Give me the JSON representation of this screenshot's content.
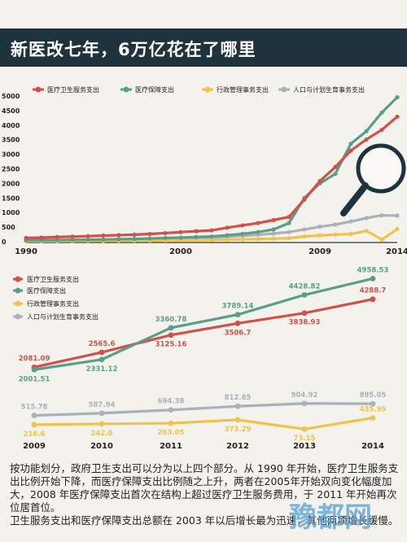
{
  "header": {
    "title": "新医改七年，6万亿花在了哪里"
  },
  "colors": {
    "health": "#d0504a",
    "insurance": "#5a9e8a",
    "admin": "#f1c24a",
    "population": "#a9b1ba",
    "header_bg": "#1f333d"
  },
  "chart_data": [
    {
      "type": "line",
      "title": "",
      "x_start": 1990,
      "x_end": 2014,
      "x_tick_labels": [
        "1990",
        "2000",
        "2009",
        "2014"
      ],
      "y_tick_labels": [
        "0",
        "500",
        "1000",
        "1500",
        "2000",
        "2500",
        "3000",
        "3500",
        "4000",
        "4500",
        "5000"
      ],
      "ylim": [
        0,
        5000
      ],
      "legend_placement": "top",
      "series": [
        {
          "name": "医疗卫生服务支出",
          "color_key": "health",
          "x": [
            1990,
            1991,
            1992,
            1993,
            1994,
            1995,
            1996,
            1997,
            1998,
            1999,
            2000,
            2001,
            2002,
            2003,
            2004,
            2005,
            2006,
            2007,
            2008,
            2009,
            2010,
            2011,
            2012,
            2013,
            2014
          ],
          "y": [
            130,
            140,
            160,
            175,
            190,
            210,
            225,
            240,
            265,
            295,
            330,
            360,
            390,
            480,
            560,
            640,
            740,
            850,
            1450,
            2081,
            2566,
            3125,
            3507,
            3839,
            4289
          ]
        },
        {
          "name": "医疗保障支出",
          "color_key": "insurance",
          "x": [
            1990,
            1991,
            1992,
            1993,
            1994,
            1995,
            1996,
            1997,
            1998,
            1999,
            2000,
            2001,
            2002,
            2003,
            2004,
            2005,
            2006,
            2007,
            2008,
            2009,
            2010,
            2011,
            2012,
            2013,
            2014
          ],
          "y": [
            50,
            55,
            60,
            65,
            70,
            75,
            85,
            95,
            110,
            125,
            140,
            160,
            180,
            220,
            270,
            330,
            420,
            640,
            1500,
            2002,
            2331,
            3361,
            3789,
            4429,
            4958
          ]
        },
        {
          "name": "行政管理事务支出",
          "color_key": "admin",
          "x": [
            1990,
            1991,
            1992,
            1993,
            1994,
            1995,
            1996,
            1997,
            1998,
            1999,
            2000,
            2001,
            2002,
            2003,
            2004,
            2005,
            2006,
            2007,
            2008,
            2009,
            2010,
            2011,
            2012,
            2013,
            2014
          ],
          "y": [
            20,
            22,
            25,
            28,
            30,
            32,
            35,
            38,
            42,
            46,
            50,
            55,
            60,
            70,
            80,
            90,
            105,
            120,
            180,
            217,
            242,
            263,
            373,
            73,
            436
          ]
        },
        {
          "name": "人口与计划生育事务支出",
          "color_key": "population",
          "x": [
            1990,
            1991,
            1992,
            1993,
            1994,
            1995,
            1996,
            1997,
            1998,
            1999,
            2000,
            2001,
            2002,
            2003,
            2004,
            2005,
            2006,
            2007,
            2008,
            2009,
            2010,
            2011,
            2012,
            2013,
            2014
          ],
          "y": [
            40,
            45,
            50,
            55,
            60,
            65,
            72,
            80,
            90,
            100,
            110,
            125,
            140,
            170,
            200,
            235,
            280,
            330,
            420,
            516,
            588,
            694,
            813,
            905,
            895
          ]
        }
      ]
    },
    {
      "type": "line",
      "title": "",
      "categories": [
        "2009",
        "2010",
        "2011",
        "2012",
        "2013",
        "2014"
      ],
      "legend_placement": "left",
      "series": [
        {
          "name": "医疗卫生服务支出",
          "color_key": "health",
          "values": [
            2081.09,
            2565.6,
            3125.16,
            3506.7,
            3838.93,
            4288.7
          ],
          "labels": [
            "2081.09",
            "2565.6",
            "3125.16",
            "3506.7",
            "3838.93",
            "4288.7"
          ]
        },
        {
          "name": "医疗保障支出",
          "color_key": "insurance",
          "values": [
            2001.51,
            2331.12,
            3360.78,
            3789.14,
            4428.82,
            4958.53
          ],
          "labels": [
            "2001.51",
            "2331.12",
            "3360.78",
            "3789.14",
            "4428.82",
            "4958.53"
          ]
        },
        {
          "name": "行政管理事务支出",
          "color_key": "admin",
          "values": [
            216.6,
            242.0,
            263.05,
            373.29,
            73.15,
            435.95
          ],
          "labels": [
            "216.6",
            "242.0",
            "263.05",
            "373.29",
            "73.15",
            "435.95"
          ]
        },
        {
          "name": "人口与计划生育事务支出",
          "color_key": "population",
          "values": [
            515.78,
            587.94,
            694.38,
            812.85,
            904.92,
            895.05
          ],
          "labels": [
            "515.78",
            "587.94",
            "694.38",
            "812.85",
            "904.92",
            "895.05"
          ]
        }
      ]
    }
  ],
  "footer": {
    "paragraph1": "按功能划分，政府卫生支出可以分为以上四个部分。从 1990 年开始，医疗卫生服务支出比例开始下降，而医疗保障支出比例随之上升，两者在2005年开始双向变化幅度加大，2008 年医疗保障支出首次在结构上超过医疗卫生服务费用，于 2011 年开始再次位居首位。",
    "paragraph2": "卫生服务支出和医疗保障支出总额在 2003 年以后增长最为迅速，其他两项增长缓慢。"
  },
  "watermark": "豫都网"
}
